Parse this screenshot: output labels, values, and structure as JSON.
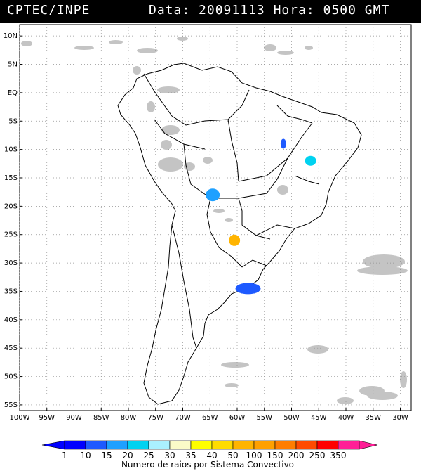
{
  "header": {
    "source": "CPTEC/INPE",
    "date_label": "Data:",
    "date_value": "20091113",
    "hour_label": "Hora:",
    "hour_value": "0500 GMT"
  },
  "map": {
    "lat_labels": [
      "10N",
      "5N",
      "EQ",
      "5S",
      "10S",
      "15S",
      "20S",
      "25S",
      "30S",
      "35S",
      "40S",
      "45S",
      "50S",
      "55S"
    ],
    "lon_labels": [
      "100W",
      "95W",
      "90W",
      "85W",
      "80W",
      "75W",
      "70W",
      "65W",
      "60W",
      "55W",
      "50W",
      "45W",
      "40W",
      "35W",
      "30W"
    ],
    "lat_range": [
      -56,
      12
    ],
    "lon_range": [
      -100,
      -28
    ],
    "grid": "dotted"
  },
  "convective_systems": [
    {
      "lon": -51.5,
      "lat": -9.0,
      "class": "10-15"
    },
    {
      "lon": -46.5,
      "lat": -12.0,
      "class": "20-25"
    },
    {
      "lon": -64.5,
      "lat": -18.0,
      "class": "15-20"
    },
    {
      "lon": -60.5,
      "lat": -26.0,
      "class": "50-100"
    },
    {
      "lon": -58.0,
      "lat": -34.5,
      "class": "10-15"
    }
  ],
  "legend": {
    "values": [
      "1",
      "10",
      "15",
      "20",
      "25",
      "30",
      "35",
      "40",
      "50",
      "100",
      "150",
      "200",
      "250",
      "350"
    ],
    "colors": [
      "#0000ff",
      "#1e5aff",
      "#1ea0ff",
      "#00d2f0",
      "#aaf0ff",
      "#fafac8",
      "#ffff00",
      "#ffdc00",
      "#ffb400",
      "#ffa000",
      "#ff7d00",
      "#ff4b00",
      "#ff0000",
      "#ff1e96"
    ],
    "caption": "Numero de raios por Sistema Convectivo"
  }
}
